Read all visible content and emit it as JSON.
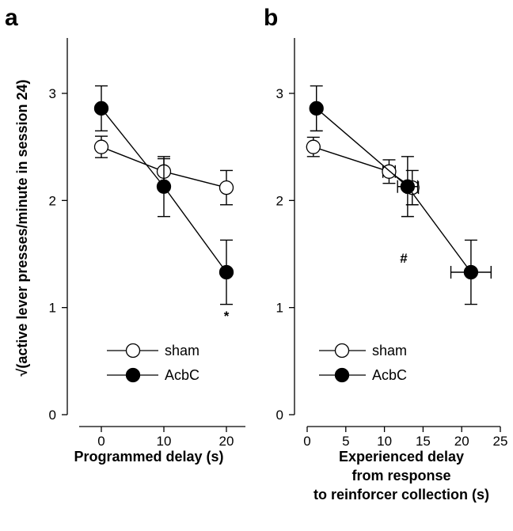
{
  "ylabel": "√(active lever presses/minute in session 24)",
  "chart_data": [
    {
      "panel": "a",
      "type": "line",
      "xlabel": [
        "Programmed delay (s)"
      ],
      "xlim": [
        -5,
        22
      ],
      "ylim": [
        0,
        3.5
      ],
      "xticks": [
        0,
        10,
        20
      ],
      "yticks": [
        0,
        1,
        2,
        3
      ],
      "series": [
        {
          "name": "sham",
          "fill": "#ffffff",
          "points": [
            {
              "x": 0,
              "y": 2.5,
              "yerr": 0.1,
              "xerr": 0
            },
            {
              "x": 10,
              "y": 2.27,
              "yerr": 0.12,
              "xerr": 0
            },
            {
              "x": 20,
              "y": 2.12,
              "yerr": 0.16,
              "xerr": 0
            }
          ]
        },
        {
          "name": "AcbC",
          "fill": "#000000",
          "points": [
            {
              "x": 0,
              "y": 2.86,
              "yerr": 0.21,
              "xerr": 0
            },
            {
              "x": 10,
              "y": 2.13,
              "yerr": 0.28,
              "xerr": 0
            },
            {
              "x": 20,
              "y": 1.33,
              "yerr": 0.3,
              "xerr": 0
            }
          ]
        }
      ],
      "annotations": [
        {
          "text": "*",
          "x": 20,
          "y": 0.88
        }
      ]
    },
    {
      "panel": "b",
      "type": "line",
      "xlabel": [
        "Experienced delay",
        "from response",
        "to reinforcer collection (s)"
      ],
      "xlim": [
        -2,
        26
      ],
      "ylim": [
        0,
        3.5
      ],
      "xticks": [
        0,
        5,
        10,
        15,
        20,
        25
      ],
      "yticks": [
        0,
        1,
        2,
        3
      ],
      "series": [
        {
          "name": "sham",
          "fill": "#ffffff",
          "points": [
            {
              "x": 0.8,
              "y": 2.5,
              "yerr": 0.09,
              "xerr": 0.3
            },
            {
              "x": 10.6,
              "y": 2.27,
              "yerr": 0.11,
              "xerr": 0.8
            },
            {
              "x": 13.6,
              "y": 2.12,
              "yerr": 0.16,
              "xerr": 0.8
            }
          ]
        },
        {
          "name": "AcbC",
          "fill": "#000000",
          "points": [
            {
              "x": 1.2,
              "y": 2.86,
              "yerr": 0.21,
              "xerr": 0.4
            },
            {
              "x": 13.0,
              "y": 2.13,
              "yerr": 0.28,
              "xerr": 1.3
            },
            {
              "x": 21.2,
              "y": 1.33,
              "yerr": 0.3,
              "xerr": 2.6
            }
          ]
        }
      ],
      "annotations": [
        {
          "text": "#",
          "x": 12.5,
          "y": 1.42
        }
      ]
    }
  ]
}
